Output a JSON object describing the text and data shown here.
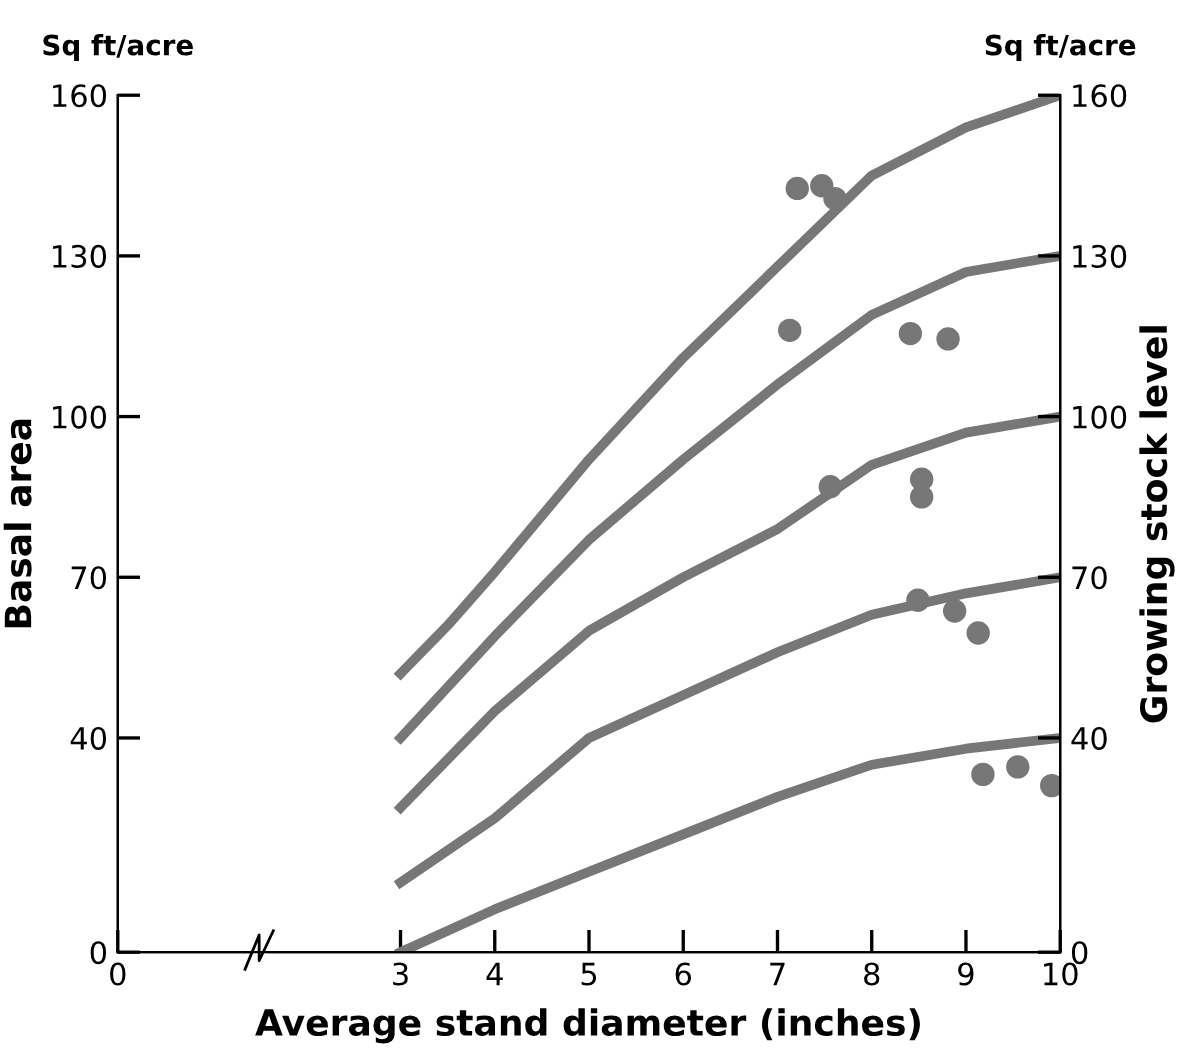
{
  "chart_data": {
    "type": "line",
    "xlabel": "Average stand diameter (inches)",
    "ylabel": "Basal area",
    "y2label": "Growing stock level",
    "annotations": [
      "Sq ft/acre",
      "Sq ft/acre"
    ],
    "series": [
      {
        "color": "#777777",
        "x": [
          3,
          3.5,
          4,
          5,
          6,
          7,
          8,
          9,
          10
        ],
        "values": [
          52,
          61,
          71,
          92,
          111,
          128,
          145,
          154,
          160
        ]
      },
      {
        "color": "#777777",
        "x": [
          3,
          4,
          5,
          6,
          7,
          8,
          9,
          10
        ],
        "values": [
          40,
          59,
          77,
          92,
          106,
          119,
          127,
          130
        ]
      },
      {
        "color": "#777777",
        "x": [
          3,
          4,
          5,
          6,
          7,
          8,
          9,
          10
        ],
        "values": [
          27,
          45,
          60,
          70,
          79,
          91,
          97,
          100
        ]
      },
      {
        "color": "#777777",
        "x": [
          3,
          4,
          5,
          6,
          7,
          8,
          9,
          10
        ],
        "values": [
          13,
          25,
          40,
          48,
          56,
          63,
          67,
          70
        ]
      },
      {
        "color": "#777777",
        "x": [
          3,
          4,
          5,
          6,
          7,
          8,
          9,
          10
        ],
        "values": [
          0,
          8,
          15,
          22,
          29,
          35,
          38,
          40
        ]
      },
      {
        "type": "scatter",
        "color": "#777777",
        "marker": "circle",
        "x": [
          7.21,
          7.47,
          7.61,
          7.13,
          8.41,
          8.81,
          7.56,
          8.53,
          8.53,
          8.49,
          8.88,
          9.13,
          9.18,
          9.55,
          9.91
        ],
        "values": [
          142.6,
          143.1,
          140.7,
          116.1,
          115.5,
          114.5,
          86.9,
          88.3,
          85,
          65.7,
          63.7,
          59.6,
          33.2,
          34.6,
          31.1
        ]
      }
    ],
    "xlim": [
      0,
      10
    ],
    "xticks": [
      0,
      3,
      4,
      5,
      6,
      7,
      8,
      9,
      10
    ],
    "ylim": [
      0,
      160
    ],
    "yticks": [
      0,
      40,
      70,
      100,
      130,
      160
    ],
    "y2lim": [
      0,
      160
    ],
    "y2ticks": [
      0,
      40,
      70,
      100,
      130,
      160
    ],
    "grid": false,
    "legend": false
  }
}
